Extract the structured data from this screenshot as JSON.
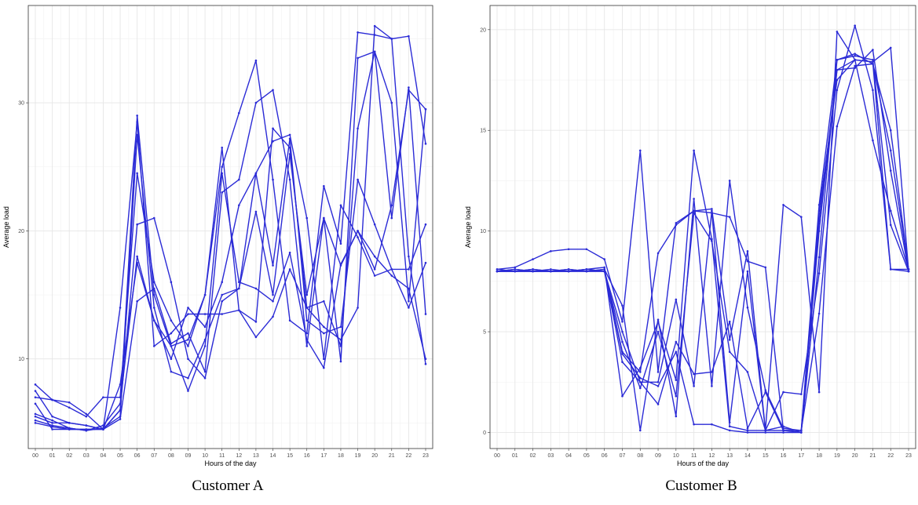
{
  "colors": {
    "series": "#2b2bd6"
  },
  "chart_data": [
    {
      "type": "line",
      "caption": "Customer A",
      "xlabel": "Hours of the day",
      "ylabel": "Average load",
      "categories": [
        "00",
        "01",
        "02",
        "03",
        "04",
        "05",
        "06",
        "07",
        "08",
        "09",
        "10",
        "11",
        "12",
        "13",
        "14",
        "15",
        "16",
        "17",
        "18",
        "19",
        "20",
        "21",
        "22",
        "23"
      ],
      "ylim": [
        3,
        37.6
      ],
      "yticks": [
        10,
        20,
        30
      ],
      "grid": true,
      "series": [
        {
          "values": [
            8.0,
            6.8,
            6.6,
            5.7,
            4.5,
            6.0,
            29.0,
            15.0,
            11.0,
            11.5,
            15.0,
            25.0,
            29.2,
            33.3,
            24.0,
            13.0,
            12.0,
            23.5,
            19.0,
            35.5,
            35.3,
            35.0,
            18.0,
            9.6
          ]
        },
        {
          "values": [
            7.5,
            5.5,
            5.0,
            4.8,
            4.5,
            14.0,
            28.5,
            11.0,
            12.0,
            13.5,
            13.5,
            13.5,
            13.8,
            11.7,
            13.3,
            17.0,
            14.0,
            14.5,
            11.0,
            28.0,
            34.0,
            21.0,
            31.2,
            13.5
          ]
        },
        {
          "values": [
            7.0,
            6.8,
            6.2,
            5.5,
            7.0,
            7.0,
            24.5,
            16.0,
            13.0,
            11.0,
            15.0,
            26.5,
            13.8,
            12.9,
            28.0,
            26.5,
            14.0,
            12.5,
            11.5,
            14.0,
            36.0,
            35.0,
            35.2,
            26.8
          ]
        },
        {
          "values": [
            5.5,
            5.0,
            5.0,
            4.8,
            4.5,
            6.0,
            20.5,
            21.0,
            16.0,
            10.0,
            8.5,
            14.5,
            15.5,
            24.5,
            17.3,
            27.2,
            13.0,
            12.0,
            12.5,
            24.0,
            20.5,
            17.0,
            17.0,
            20.5
          ]
        },
        {
          "values": [
            5.0,
            4.7,
            4.5,
            4.5,
            4.5,
            5.3,
            14.5,
            15.5,
            11.2,
            12.0,
            9.0,
            23.0,
            24.0,
            30.0,
            31.0,
            24.0,
            11.0,
            21.0,
            9.8,
            33.5,
            34.0,
            30.0,
            14.5,
            29.5
          ]
        },
        {
          "values": [
            6.5,
            4.5,
            4.5,
            4.5,
            4.5,
            8.0,
            17.5,
            13.0,
            11.0,
            7.5,
            11.0,
            24.5,
            16.0,
            15.5,
            14.5,
            18.3,
            11.5,
            9.3,
            17.4,
            20.0,
            18.0,
            16.5,
            15.5,
            10.0
          ]
        },
        {
          "values": [
            5.7,
            5.2,
            4.6,
            4.4,
            4.8,
            6.5,
            18.0,
            13.0,
            10.0,
            14.0,
            12.5,
            16.0,
            22.0,
            24.5,
            27.0,
            27.5,
            21.0,
            10.0,
            22.0,
            19.5,
            16.5,
            17.0,
            14.0,
            17.5
          ]
        },
        {
          "values": [
            5.2,
            4.8,
            4.6,
            4.4,
            4.6,
            5.5,
            27.5,
            14.0,
            9.0,
            8.5,
            11.5,
            15.0,
            15.5,
            21.5,
            15.0,
            26.0,
            15.0,
            21.0,
            17.3,
            20.0,
            17.0,
            22.0,
            31.0,
            29.5
          ]
        }
      ]
    },
    {
      "type": "line",
      "caption": "Customer B",
      "xlabel": "Hours of the day",
      "ylabel": "Average load",
      "categories": [
        "00",
        "01",
        "02",
        "03",
        "04",
        "05",
        "06",
        "07",
        "08",
        "09",
        "10",
        "11",
        "12",
        "13",
        "14",
        "15",
        "16",
        "17",
        "18",
        "19",
        "20",
        "21",
        "22",
        "23"
      ],
      "ylim": [
        -0.8,
        21.2
      ],
      "yticks": [
        0,
        5,
        10,
        15,
        20
      ],
      "grid": true,
      "series": [
        {
          "values": [
            8.1,
            8.2,
            8.6,
            9.0,
            9.1,
            9.1,
            8.6,
            5.5,
            14.0,
            3.0,
            10.4,
            11.0,
            11.1,
            4.6,
            9.0,
            0.1,
            11.3,
            10.7,
            2.0,
            19.9,
            18.5,
            18.4,
            19.1,
            8.0
          ]
        },
        {
          "values": [
            8.0,
            8.0,
            8.0,
            8.0,
            8.0,
            8.1,
            8.2,
            1.8,
            3.2,
            5.5,
            2.6,
            14.0,
            9.6,
            0.3,
            0.1,
            0.1,
            0.1,
            0.0,
            8.7,
            18.5,
            18.8,
            18.3,
            15.0,
            8.1
          ]
        },
        {
          "values": [
            8.1,
            8.0,
            8.1,
            8.0,
            8.0,
            8.1,
            8.0,
            4.0,
            3.0,
            8.9,
            10.3,
            11.0,
            10.9,
            10.7,
            8.5,
            8.2,
            0.1,
            0.1,
            5.9,
            15.2,
            18.2,
            18.3,
            14.0,
            8.1
          ]
        },
        {
          "values": [
            8.0,
            8.1,
            8.0,
            8.0,
            8.1,
            8.0,
            8.1,
            6.3,
            0.1,
            5.6,
            0.8,
            11.6,
            2.3,
            12.5,
            6.2,
            2.1,
            0.2,
            0.1,
            11.3,
            18.5,
            18.7,
            18.5,
            10.3,
            8.0
          ]
        },
        {
          "values": [
            8.0,
            8.0,
            8.1,
            8.0,
            8.0,
            8.0,
            8.0,
            5.0,
            2.5,
            2.5,
            6.6,
            2.3,
            11.0,
            0.5,
            8.0,
            0.1,
            2.0,
            1.9,
            7.9,
            17.0,
            20.2,
            17.0,
            8.1,
            8.0
          ]
        },
        {
          "values": [
            8.0,
            8.0,
            8.0,
            8.0,
            8.0,
            8.1,
            8.0,
            3.5,
            2.5,
            1.4,
            4.5,
            2.9,
            3.0,
            5.5,
            0.2,
            2.0,
            0.1,
            0.1,
            10.0,
            18.0,
            18.5,
            18.4,
            8.1,
            8.1
          ]
        },
        {
          "values": [
            8.0,
            8.1,
            8.0,
            8.1,
            8.0,
            8.0,
            8.1,
            3.9,
            2.7,
            2.3,
            4.0,
            0.4,
            0.4,
            0.1,
            0.0,
            0.0,
            0.0,
            0.0,
            11.0,
            17.5,
            18.5,
            14.5,
            11.0,
            8.1
          ]
        },
        {
          "values": [
            8.0,
            8.0,
            8.0,
            8.0,
            8.1,
            8.0,
            8.0,
            4.5,
            2.2,
            5.0,
            1.8,
            10.9,
            9.5,
            4.0,
            3.0,
            0.1,
            0.3,
            0.0,
            10.5,
            18.0,
            18.1,
            19.0,
            13.0,
            8.0
          ]
        }
      ]
    }
  ]
}
